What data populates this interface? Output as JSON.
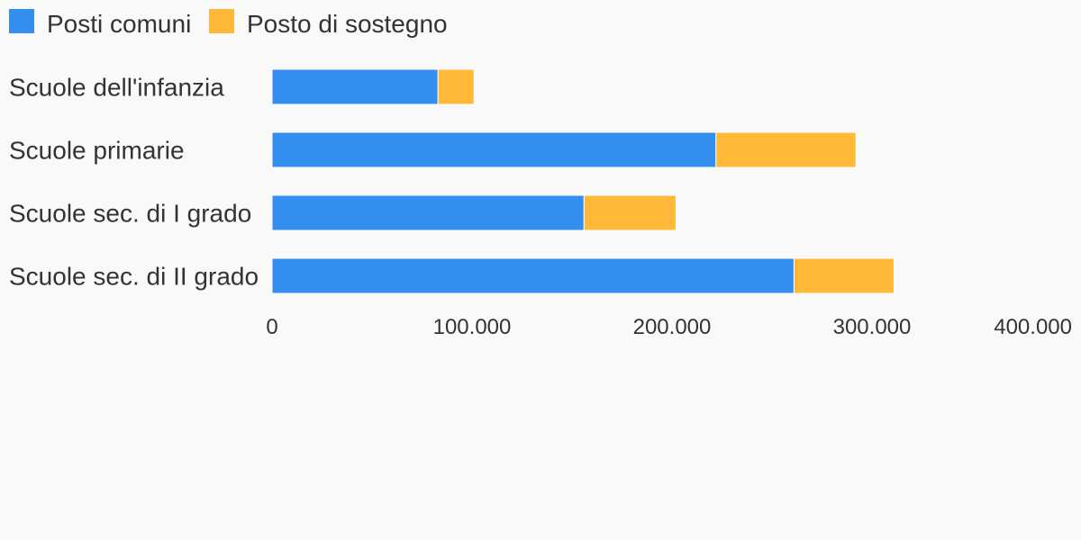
{
  "chart_data": {
    "type": "bar",
    "orientation": "horizontal",
    "stacked": true,
    "categories": [
      "Scuole dell'infanzia",
      "Scuole primarie",
      "Scuole sec. di I grado",
      "Scuole sec. di II grado"
    ],
    "series": [
      {
        "name": "Posti comuni",
        "color": "#348eee",
        "values": [
          83000,
          222000,
          156000,
          261000
        ]
      },
      {
        "name": "Posto di sostegno",
        "color": "#ffb838",
        "values": [
          18000,
          70000,
          46000,
          50000
        ]
      }
    ],
    "xlim": [
      0,
      400000
    ],
    "xticks": [
      0,
      100000,
      200000,
      300000,
      400000
    ],
    "xtick_labels": [
      "0",
      "100.000",
      "200.000",
      "300.000",
      "400.000"
    ],
    "title": "",
    "xlabel": "",
    "ylabel": "",
    "grid": false,
    "legend": "top-left"
  }
}
